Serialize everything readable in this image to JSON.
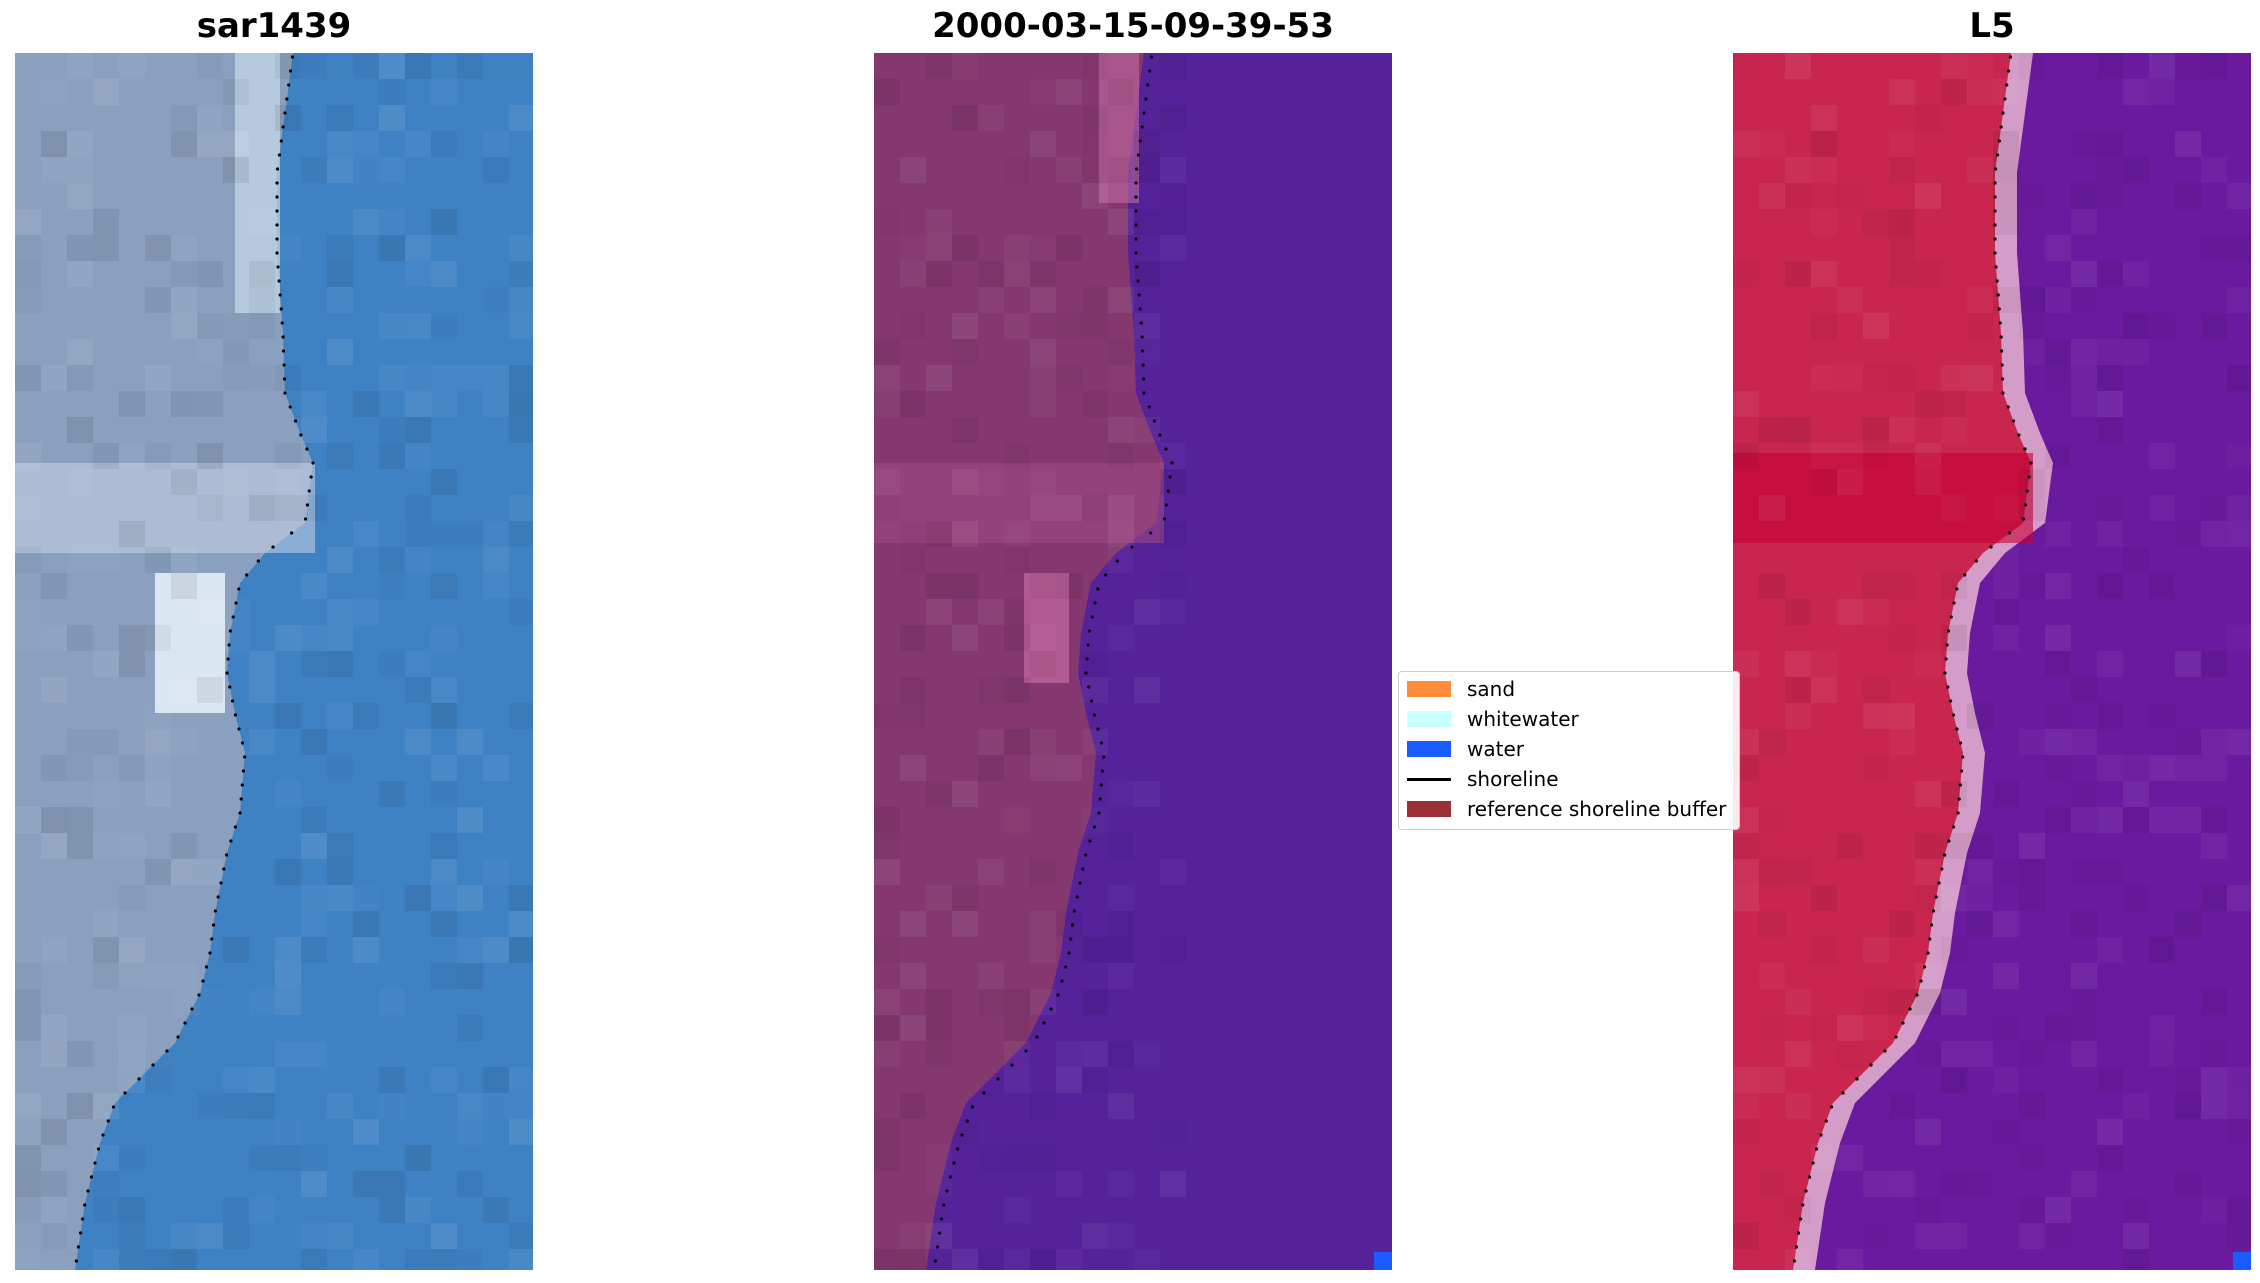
{
  "panels": [
    {
      "title": "sar1439",
      "type": "rgb"
    },
    {
      "title": "2000-03-15-09-39-53",
      "type": "classified"
    },
    {
      "title": "L5",
      "type": "index"
    }
  ],
  "colors": {
    "rgb_land": "#8aa0be",
    "rgb_water": "#3f82c4",
    "class_land": "#84386f",
    "class_water": "#55229a",
    "class_water_pixel": "#1a5cff",
    "index_land": "#c9264f",
    "index_water": "#6a1a9e",
    "index_edge": "#d49cc8",
    "shoreline": "#000000"
  },
  "legend": {
    "items": [
      {
        "label": "sand",
        "color": "#ff8c3a",
        "kind": "patch"
      },
      {
        "label": "whitewater",
        "color": "#c8ffff",
        "kind": "patch"
      },
      {
        "label": "water",
        "color": "#1a5cff",
        "kind": "patch"
      },
      {
        "label": "shoreline",
        "color": "#000000",
        "kind": "line"
      },
      {
        "label": "reference shoreline buffer",
        "color": "#9a2f36",
        "kind": "patch"
      }
    ]
  }
}
